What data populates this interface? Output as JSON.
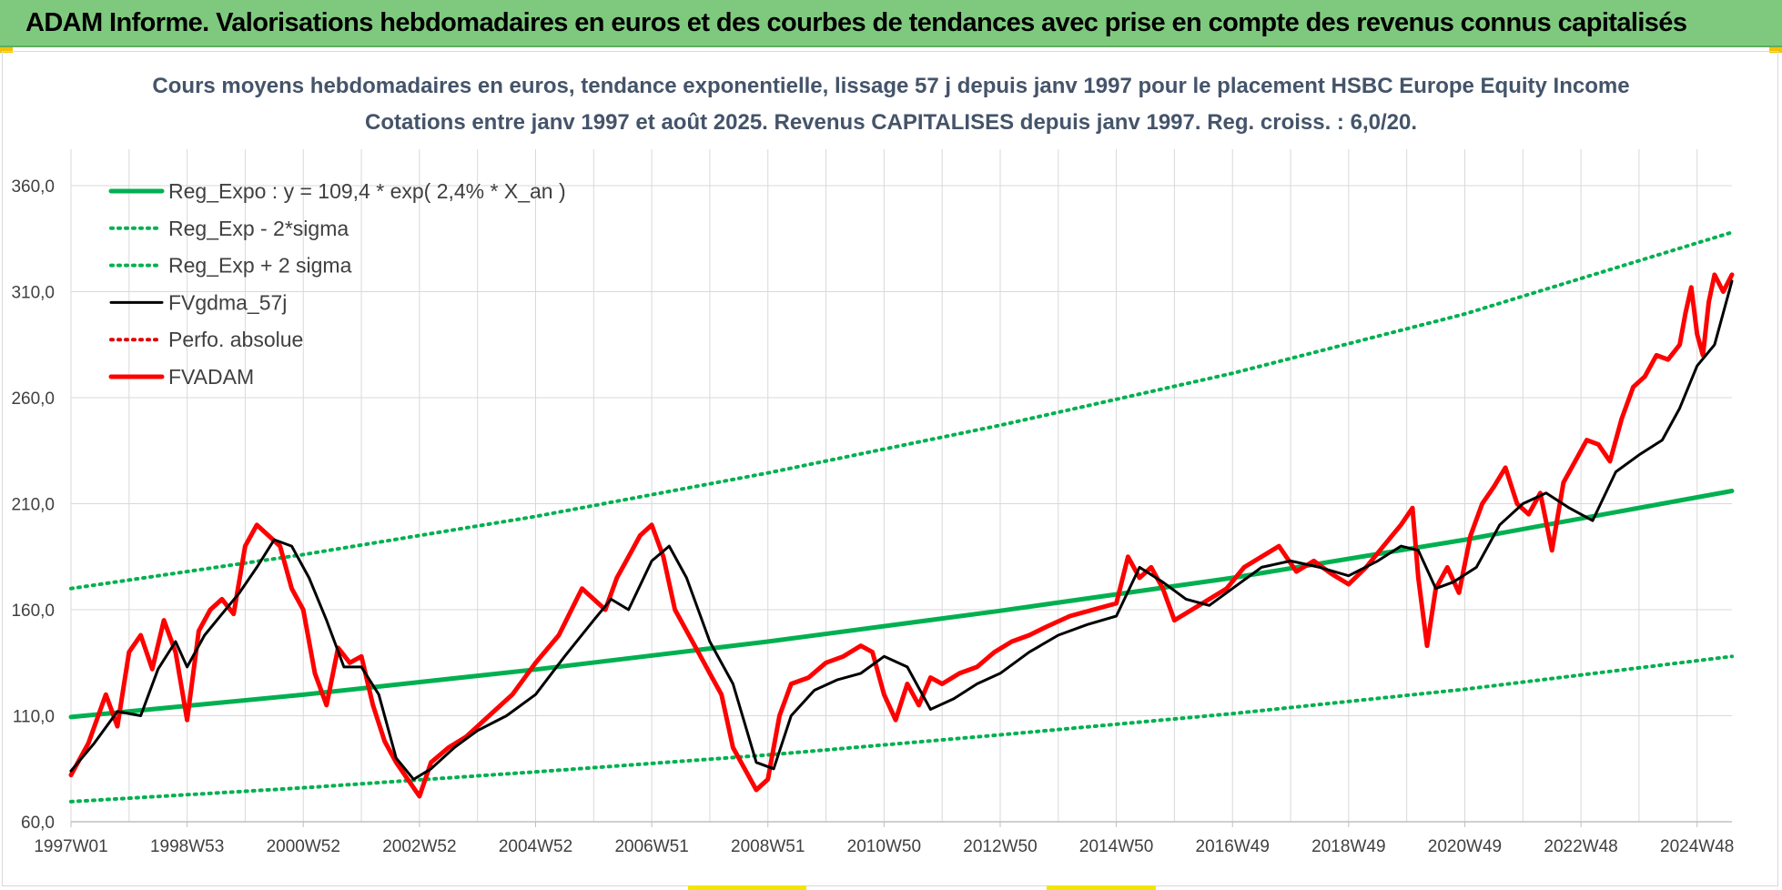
{
  "banner": {
    "title": "ADAM Informe. Valorisations hebdomadaires en euros et des courbes de tendances avec prise en compte des revenus connus capitalisés"
  },
  "colors": {
    "banner_bg": "#7fc97f",
    "reg_expo": "#00b050",
    "sigma_bands": "#00b050",
    "fvgdma": "#000000",
    "perfo": "#e00000",
    "fvadam": "#ff0000",
    "grid": "#d9d9d9",
    "title": "#44546a"
  },
  "chart_data": {
    "type": "line",
    "title": "Cours moyens hebdomadaires en euros, tendance exponentielle, lissage 57 j depuis janv 1997 pour le placement HSBC Europe Equity Income",
    "subtitle": "Cotations entre janv 1997 et août 2025. Revenus CAPITALISES depuis janv 1997. Reg. croiss. : 6,0/20.",
    "xlabel": "",
    "ylabel": "",
    "x_range": [
      1997.0,
      2025.6
    ],
    "x_ticks": [
      {
        "label": "1997W01",
        "x": 1997.0
      },
      {
        "label": "1998W53",
        "x": 1999.0
      },
      {
        "label": "2000W52",
        "x": 2001.0
      },
      {
        "label": "2002W52",
        "x": 2003.0
      },
      {
        "label": "2004W52",
        "x": 2005.0
      },
      {
        "label": "2006W51",
        "x": 2007.0
      },
      {
        "label": "2008W51",
        "x": 2009.0
      },
      {
        "label": "2010W50",
        "x": 2011.0
      },
      {
        "label": "2012W50",
        "x": 2013.0
      },
      {
        "label": "2014W50",
        "x": 2015.0
      },
      {
        "label": "2016W49",
        "x": 2017.0
      },
      {
        "label": "2018W49",
        "x": 2019.0
      },
      {
        "label": "2020W49",
        "x": 2021.0
      },
      {
        "label": "2022W48",
        "x": 2023.0
      },
      {
        "label": "2024W48",
        "x": 2025.0
      }
    ],
    "ylim": [
      60,
      360
    ],
    "y_ticks": [
      {
        "label": "60,0",
        "value": 60
      },
      {
        "label": "110,0",
        "value": 110
      },
      {
        "label": "160,0",
        "value": 160
      },
      {
        "label": "210,0",
        "value": 210
      },
      {
        "label": "260,0",
        "value": 260
      },
      {
        "label": "310,0",
        "value": 310
      },
      {
        "label": "360,0",
        "value": 360
      }
    ],
    "grid": true,
    "legend_position": "top-left",
    "series": [
      {
        "name": "Reg_Expo : y = 109,4 * exp( 2,4% *  X_an )",
        "style": "solid-thick",
        "color": "#00b050",
        "x": [
          1997.0,
          2001.0,
          2005.0,
          2009.0,
          2013.0,
          2017.0,
          2021.0,
          2025.6
        ],
        "values": [
          109.4,
          119.9,
          131.8,
          145.0,
          159.5,
          175.0,
          193.0,
          216.0
        ]
      },
      {
        "name": "Reg_Exp - 2*sigma",
        "style": "dotted",
        "color": "#00b050",
        "x": [
          1997.0,
          2001.0,
          2005.0,
          2009.0,
          2013.0,
          2017.0,
          2021.0,
          2025.6
        ],
        "values": [
          69.5,
          76.0,
          83.5,
          91.5,
          101.0,
          111.0,
          122.5,
          138.0
        ]
      },
      {
        "name": "Reg_Exp + 2 sigma",
        "style": "dotted",
        "color": "#00b050",
        "x": [
          1997.0,
          2001.0,
          2005.0,
          2009.0,
          2013.0,
          2017.0,
          2021.0,
          2025.6
        ],
        "values": [
          170.0,
          186.0,
          204.0,
          224.5,
          247.0,
          271.5,
          299.5,
          338.0
        ]
      },
      {
        "name": "FVgdma_57j",
        "style": "solid",
        "color": "#000000",
        "x": [
          1997.0,
          1997.4,
          1997.8,
          1998.2,
          1998.5,
          1998.8,
          1999.0,
          1999.3,
          1999.6,
          1999.9,
          2000.2,
          2000.5,
          2000.8,
          2001.1,
          2001.4,
          2001.7,
          2002.0,
          2002.3,
          2002.6,
          2002.9,
          2003.2,
          2003.6,
          2004.0,
          2004.5,
          2005.0,
          2005.5,
          2006.0,
          2006.3,
          2006.6,
          2007.0,
          2007.3,
          2007.6,
          2008.0,
          2008.4,
          2008.8,
          2009.1,
          2009.4,
          2009.8,
          2010.2,
          2010.6,
          2011.0,
          2011.4,
          2011.8,
          2012.2,
          2012.6,
          2013.0,
          2013.5,
          2014.0,
          2014.5,
          2015.0,
          2015.4,
          2015.8,
          2016.2,
          2016.6,
          2017.0,
          2017.5,
          2018.0,
          2018.5,
          2019.0,
          2019.5,
          2019.9,
          2020.2,
          2020.5,
          2020.8,
          2021.2,
          2021.6,
          2022.0,
          2022.4,
          2022.8,
          2023.2,
          2023.6,
          2024.0,
          2024.4,
          2024.7,
          2025.0,
          2025.3,
          2025.6
        ],
        "values": [
          84,
          97,
          112,
          110,
          132,
          145,
          133,
          148,
          158,
          168,
          180,
          193,
          190,
          175,
          155,
          133,
          133,
          120,
          90,
          80,
          85,
          95,
          103,
          110,
          120,
          138,
          155,
          165,
          160,
          183,
          190,
          175,
          145,
          125,
          88,
          85,
          110,
          122,
          127,
          130,
          138,
          133,
          113,
          118,
          125,
          130,
          140,
          148,
          153,
          157,
          180,
          173,
          165,
          162,
          170,
          180,
          183,
          180,
          176,
          183,
          190,
          188,
          170,
          173,
          180,
          200,
          210,
          215,
          208,
          202,
          225,
          233,
          240,
          255,
          275,
          285,
          315
        ]
      },
      {
        "name": "Perfo. absolue",
        "style": "dotted",
        "color": "#e00000",
        "x": [],
        "values": []
      },
      {
        "name": "FVADAM",
        "style": "solid-thick",
        "color": "#ff0000",
        "x": [
          1997.0,
          1997.3,
          1997.6,
          1997.8,
          1998.0,
          1998.2,
          1998.4,
          1998.6,
          1998.8,
          1999.0,
          1999.2,
          1999.4,
          1999.6,
          1999.8,
          2000.0,
          2000.2,
          2000.4,
          2000.6,
          2000.8,
          2001.0,
          2001.2,
          2001.4,
          2001.6,
          2001.8,
          2002.0,
          2002.2,
          2002.4,
          2002.6,
          2002.8,
          2003.0,
          2003.2,
          2003.5,
          2003.8,
          2004.2,
          2004.6,
          2005.0,
          2005.4,
          2005.8,
          2006.0,
          2006.2,
          2006.4,
          2006.6,
          2006.8,
          2007.0,
          2007.2,
          2007.4,
          2007.6,
          2007.8,
          2008.0,
          2008.2,
          2008.4,
          2008.6,
          2008.8,
          2009.0,
          2009.2,
          2009.4,
          2009.7,
          2010.0,
          2010.3,
          2010.6,
          2010.8,
          2011.0,
          2011.2,
          2011.4,
          2011.6,
          2011.8,
          2012.0,
          2012.3,
          2012.6,
          2012.9,
          2013.2,
          2013.5,
          2013.8,
          2014.2,
          2014.6,
          2015.0,
          2015.2,
          2015.4,
          2015.6,
          2015.8,
          2016.0,
          2016.3,
          2016.6,
          2016.9,
          2017.2,
          2017.5,
          2017.8,
          2018.1,
          2018.4,
          2018.7,
          2019.0,
          2019.3,
          2019.6,
          2019.9,
          2020.1,
          2020.2,
          2020.35,
          2020.5,
          2020.7,
          2020.9,
          2021.1,
          2021.3,
          2021.5,
          2021.7,
          2021.9,
          2022.1,
          2022.3,
          2022.5,
          2022.7,
          2022.9,
          2023.1,
          2023.3,
          2023.5,
          2023.7,
          2023.9,
          2024.1,
          2024.3,
          2024.5,
          2024.7,
          2024.8,
          2024.9,
          2025.0,
          2025.1,
          2025.2,
          2025.3,
          2025.45,
          2025.6
        ],
        "values": [
          82,
          97,
          120,
          105,
          140,
          148,
          132,
          155,
          140,
          108,
          150,
          160,
          165,
          158,
          190,
          200,
          195,
          190,
          170,
          160,
          130,
          115,
          142,
          135,
          138,
          115,
          98,
          88,
          80,
          72,
          88,
          95,
          100,
          110,
          120,
          135,
          148,
          170,
          165,
          160,
          175,
          185,
          195,
          200,
          185,
          160,
          150,
          140,
          130,
          120,
          95,
          85,
          75,
          80,
          110,
          125,
          128,
          135,
          138,
          143,
          140,
          120,
          108,
          125,
          115,
          128,
          125,
          130,
          133,
          140,
          145,
          148,
          152,
          157,
          160,
          163,
          185,
          175,
          180,
          170,
          155,
          160,
          165,
          170,
          180,
          185,
          190,
          178,
          183,
          177,
          172,
          180,
          190,
          200,
          208,
          175,
          143,
          170,
          180,
          168,
          195,
          210,
          218,
          227,
          210,
          205,
          215,
          188,
          220,
          230,
          240,
          238,
          230,
          250,
          265,
          270,
          280,
          278,
          285,
          300,
          312,
          290,
          280,
          305,
          318,
          310,
          318
        ]
      }
    ]
  }
}
